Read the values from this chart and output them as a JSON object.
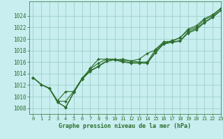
{
  "title": "Graphe pression niveau de la mer (hPa)",
  "bg_color": "#c8eef0",
  "grid_color": "#9dcfca",
  "line_color": "#2d6e2d",
  "xlim": [
    -0.5,
    23
  ],
  "ylim": [
    1007.0,
    1026.5
  ],
  "yticks": [
    1008,
    1010,
    1012,
    1014,
    1016,
    1018,
    1020,
    1022,
    1024
  ],
  "xticks": [
    0,
    1,
    2,
    3,
    4,
    5,
    6,
    7,
    8,
    9,
    10,
    11,
    12,
    13,
    14,
    15,
    16,
    17,
    18,
    19,
    20,
    21,
    22,
    23
  ],
  "series": [
    [
      1013.3,
      1012.1,
      1011.5,
      1009.2,
      1009.2,
      1011.0,
      1013.2,
      1014.8,
      1015.8,
      1016.5,
      1016.5,
      1016.3,
      1016.2,
      1016.0,
      1016.0,
      1018.2,
      1019.5,
      1019.6,
      1020.2,
      1021.5,
      1022.0,
      1023.3,
      1024.0,
      1025.3
    ],
    [
      1013.3,
      1012.1,
      1011.4,
      1009.3,
      1010.9,
      1010.9,
      1013.0,
      1014.9,
      1016.5,
      1016.5,
      1016.4,
      1016.5,
      1016.2,
      1016.5,
      1017.5,
      1018.1,
      1019.3,
      1019.7,
      1020.2,
      1021.7,
      1022.3,
      1023.5,
      1024.2,
      1025.3
    ],
    [
      1013.3,
      1012.1,
      1011.4,
      1009.0,
      1008.2,
      1010.8,
      1013.1,
      1014.5,
      1015.3,
      1016.2,
      1016.4,
      1016.1,
      1015.9,
      1015.9,
      1015.9,
      1017.8,
      1019.2,
      1019.5,
      1019.7,
      1021.2,
      1021.8,
      1022.9,
      1023.8,
      1025.0
    ],
    [
      1013.3,
      1012.1,
      1011.4,
      1009.1,
      1008.1,
      1010.7,
      1013.0,
      1014.4,
      1015.2,
      1016.1,
      1016.4,
      1016.0,
      1015.8,
      1015.8,
      1015.8,
      1017.6,
      1019.1,
      1019.4,
      1019.6,
      1021.0,
      1021.6,
      1022.8,
      1023.7,
      1024.9
    ]
  ]
}
